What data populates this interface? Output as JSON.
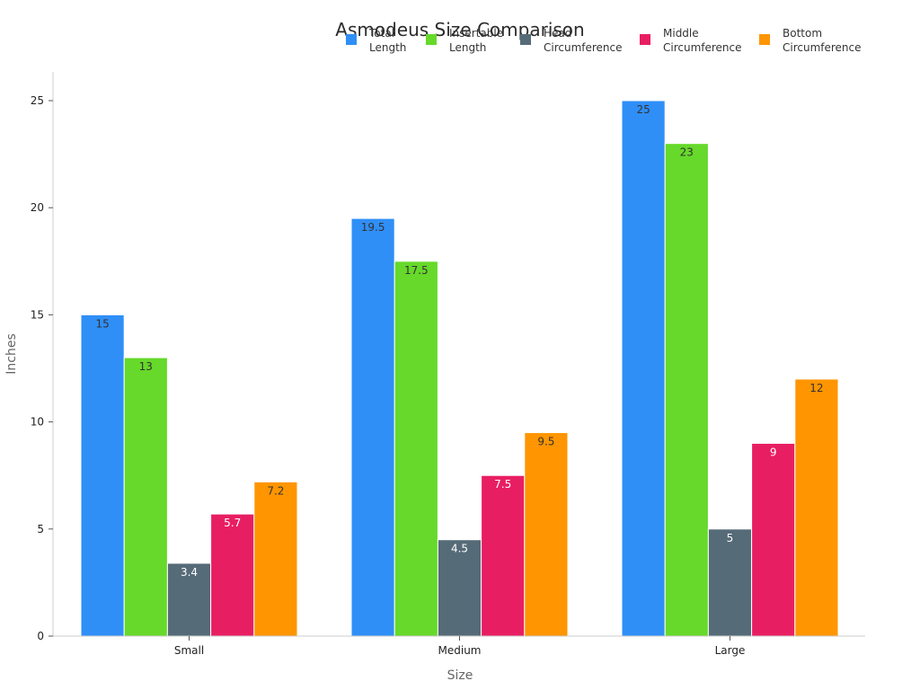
{
  "chart_data": {
    "type": "bar",
    "title": "Asmodeus Size Comparison",
    "xlabel": "Size",
    "ylabel": "Inches",
    "categories": [
      "Small",
      "Medium",
      "Large"
    ],
    "ylim": [
      0,
      26
    ],
    "yticks": [
      0,
      5,
      10,
      15,
      20,
      25
    ],
    "grid": false,
    "legend_position": "top-right",
    "series": [
      {
        "name": [
          "Total",
          "Length"
        ],
        "color": "#2f8ff7",
        "label_color": "#333333",
        "values": [
          15,
          19.5,
          25
        ]
      },
      {
        "name": [
          "Insertable",
          "Length"
        ],
        "color": "#66d92a",
        "label_color": "#333333",
        "values": [
          13,
          17.5,
          23
        ]
      },
      {
        "name": [
          "Head",
          "Circumference"
        ],
        "color": "#566b78",
        "label_color": "#ffffff",
        "values": [
          3.4,
          4.5,
          5
        ]
      },
      {
        "name": [
          "Middle",
          "Circumference"
        ],
        "color": "#e81e63",
        "label_color": "#ffffff",
        "values": [
          5.7,
          7.5,
          9
        ]
      },
      {
        "name": [
          "Bottom",
          "Circumference"
        ],
        "color": "#ff9500",
        "label_color": "#333333",
        "values": [
          7.2,
          9.5,
          12
        ]
      }
    ]
  }
}
